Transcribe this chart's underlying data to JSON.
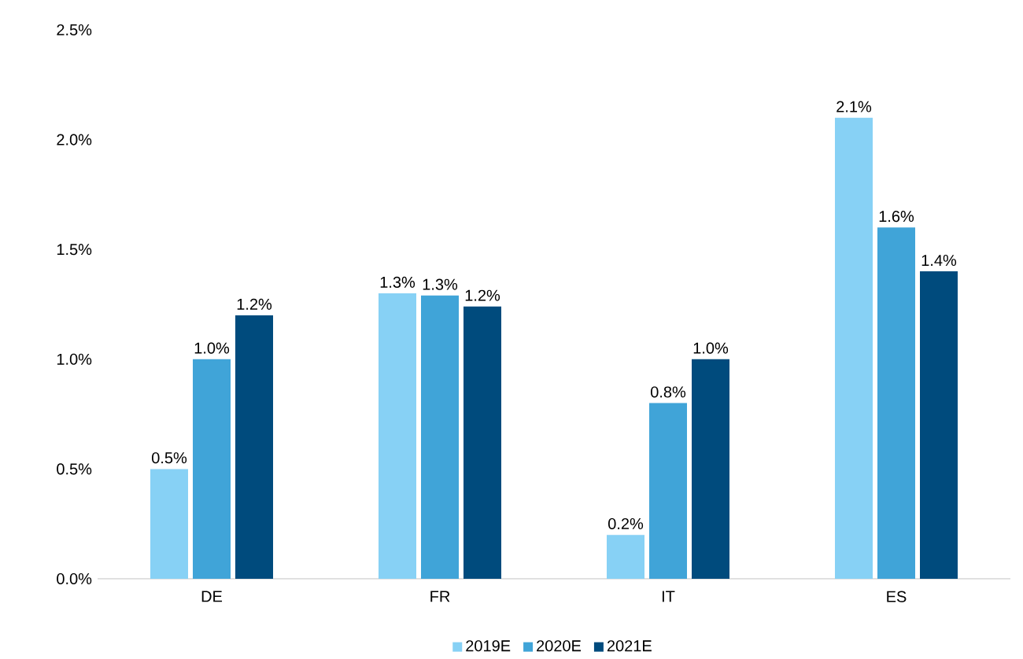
{
  "chart_data": {
    "type": "bar",
    "categories": [
      "DE",
      "FR",
      "IT",
      "ES"
    ],
    "series": [
      {
        "name": "2019E",
        "color": "#87d1f5",
        "values": [
          0.5,
          1.3,
          0.2,
          2.1
        ],
        "value_labels": [
          "0.5%",
          "1.3%",
          "0.2%",
          "2.1%"
        ]
      },
      {
        "name": "2020E",
        "color": "#40a4d8",
        "values": [
          1.0,
          1.29,
          0.8,
          1.6
        ],
        "value_labels": [
          "1.0%",
          "1.3%",
          "0.8%",
          "1.6%"
        ]
      },
      {
        "name": "2021E",
        "color": "#004b7d",
        "values": [
          1.2,
          1.24,
          1.0,
          1.4
        ],
        "value_labels": [
          "1.2%",
          "1.2%",
          "1.0%",
          "1.4%"
        ]
      }
    ],
    "ylim": [
      0,
      2.5
    ],
    "yticks": [
      {
        "value": 0,
        "label": "0.0%"
      },
      {
        "value": 0.5,
        "label": "0.5%"
      },
      {
        "value": 1.0,
        "label": "1.0%"
      },
      {
        "value": 1.5,
        "label": "1.5%"
      },
      {
        "value": 2.0,
        "label": "2.0%"
      },
      {
        "value": 2.5,
        "label": "2.5%"
      }
    ],
    "grid": false,
    "legend": "bottom"
  }
}
